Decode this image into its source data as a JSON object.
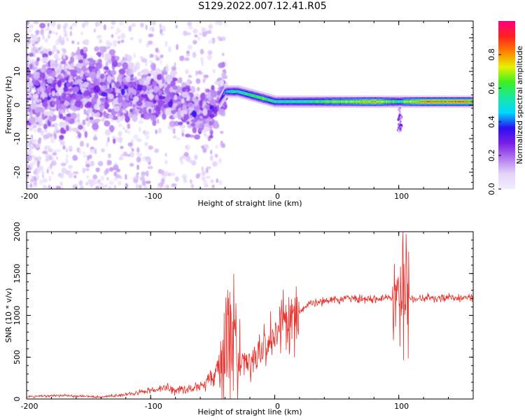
{
  "title": "S129.2022.007.12.41.R05",
  "chart_data": [
    {
      "type": "heatmap",
      "xlabel": "Height of straight line (km)",
      "ylabel": "Frequency (Hz)",
      "xlim": [
        -200,
        160
      ],
      "ylim": [
        -25,
        25
      ],
      "xticks": [
        -200,
        -100,
        0,
        100
      ],
      "yticks": [
        -20,
        -10,
        0,
        10,
        20
      ],
      "colorbar": {
        "label": "Normalized spectral amplitude",
        "range": [
          0,
          1
        ],
        "ticks": [
          0.0,
          0.2,
          0.4,
          0.6,
          0.8
        ],
        "colormap": [
          "#f2eefc",
          "#e4d4fa",
          "#b27af0",
          "#7a1ee6",
          "#2a10f0",
          "#00d8ff",
          "#18e8a0",
          "#3cf020",
          "#e8f000",
          "#ff8000",
          "#ff2020",
          "#ff0080"
        ]
      },
      "ridge": {
        "description_points_x": [
          -180,
          -160,
          -140,
          -120,
          -100,
          -80,
          -60,
          -50,
          -40,
          -30,
          -20,
          -10,
          0,
          20,
          40,
          60,
          80,
          95,
          100,
          105,
          120,
          140,
          160
        ],
        "frequency_hz": [
          4,
          5,
          5,
          4,
          3,
          2,
          -3,
          -2,
          4,
          4,
          3,
          2,
          1,
          1,
          1,
          1,
          1,
          1,
          1,
          1,
          1,
          1,
          1
        ],
        "peak_amplitude": [
          0.25,
          0.25,
          0.3,
          0.3,
          0.3,
          0.3,
          0.3,
          0.2,
          0.5,
          0.6,
          0.65,
          0.7,
          0.6,
          0.6,
          0.7,
          0.75,
          0.85,
          0.7,
          0.6,
          0.75,
          0.9,
          0.9,
          0.9
        ]
      }
    },
    {
      "type": "line",
      "xlabel": "Height of straight line (km)",
      "ylabel": "SNR (10 * v/v)",
      "xlim": [
        -200,
        160
      ],
      "ylim": [
        0,
        2000
      ],
      "xticks": [
        -200,
        -100,
        0,
        100
      ],
      "yticks": [
        0,
        500,
        1000,
        1500,
        2000
      ],
      "color": "#e8302a",
      "series": [
        {
          "x": [
            -200,
            -180,
            -160,
            -140,
            -120,
            -100,
            -90,
            -80,
            -70,
            -60,
            -50,
            -45,
            -40,
            -36,
            -33,
            -30,
            -20,
            -10,
            0,
            10,
            20,
            30,
            40,
            60,
            80,
            95,
            100,
            103,
            105,
            106,
            108,
            110,
            120,
            140,
            160
          ],
          "y": [
            25,
            40,
            35,
            25,
            50,
            100,
            140,
            110,
            120,
            150,
            260,
            380,
            700,
            1000,
            700,
            400,
            470,
            550,
            750,
            900,
            1050,
            1150,
            1180,
            1200,
            1200,
            1210,
            1250,
            1500,
            900,
            1800,
            1200,
            1200,
            1200,
            1210,
            1210
          ]
        }
      ]
    }
  ]
}
